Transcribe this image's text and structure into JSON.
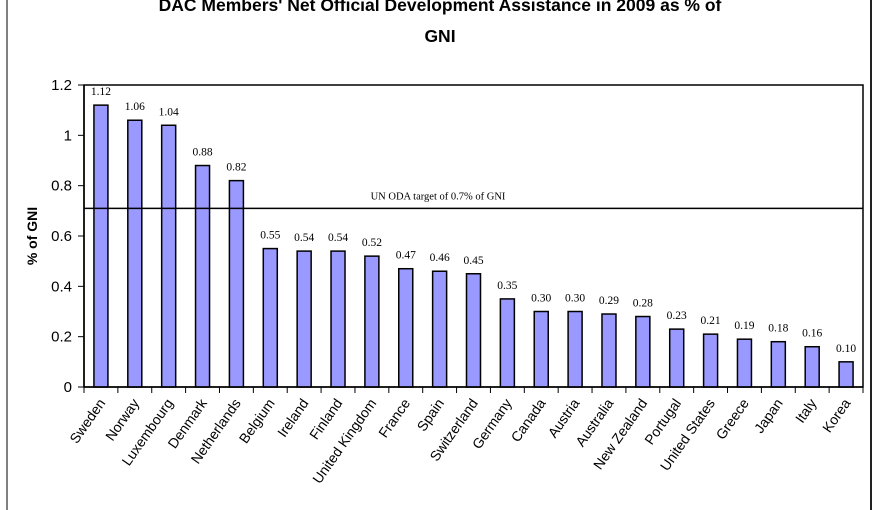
{
  "chart_data": {
    "type": "bar",
    "title": "DAC Members' Net Official Development Assistance in 2009 as % of GNI",
    "title_lines": [
      "DAC Members' Net Official Development Assistance in 2009 as % of",
      "GNI"
    ],
    "xlabel": "",
    "ylabel": "% of GNI",
    "ylim": [
      0,
      1.2
    ],
    "yticks": [
      0,
      0.2,
      0.4,
      0.6,
      0.8,
      1,
      1.2
    ],
    "ytick_labels": [
      "0",
      "0.2",
      "0.4",
      "0.6",
      "0.8",
      "1",
      "1.2"
    ],
    "grid": false,
    "legend": "none",
    "bar_color": "#9999ff",
    "bar_edge_color": "#000000",
    "categories": [
      "Sweden",
      "Norway",
      "Luxembourg",
      "Denmark",
      "Netherlands",
      "Belgium",
      "Ireland",
      "Finland",
      "United Kingdom",
      "France",
      "Spain",
      "Switzerland",
      "Germany",
      "Canada",
      "Austria",
      "Australia",
      "New Zealand",
      "Portugal",
      "United States",
      "Greece",
      "Japan",
      "Italy",
      "Korea"
    ],
    "values": [
      1.12,
      1.06,
      1.04,
      0.88,
      0.82,
      0.55,
      0.54,
      0.54,
      0.52,
      0.47,
      0.46,
      0.45,
      0.35,
      0.3,
      0.3,
      0.29,
      0.28,
      0.23,
      0.21,
      0.19,
      0.18,
      0.16,
      0.1
    ],
    "data_labels": [
      "1.12",
      "1.06",
      "1.04",
      "0.88",
      "0.82",
      "0.55",
      "0.54",
      "0.54",
      "0.52",
      "0.47",
      "0.46",
      "0.45",
      "0.35",
      "0.30",
      "0.30",
      "0.29",
      "0.28",
      "0.23",
      "0.21",
      "0.19",
      "0.18",
      "0.16",
      "0.10"
    ],
    "reference_line": {
      "value": 0.71,
      "label": "UN ODA target of 0.7% of GNI"
    }
  }
}
